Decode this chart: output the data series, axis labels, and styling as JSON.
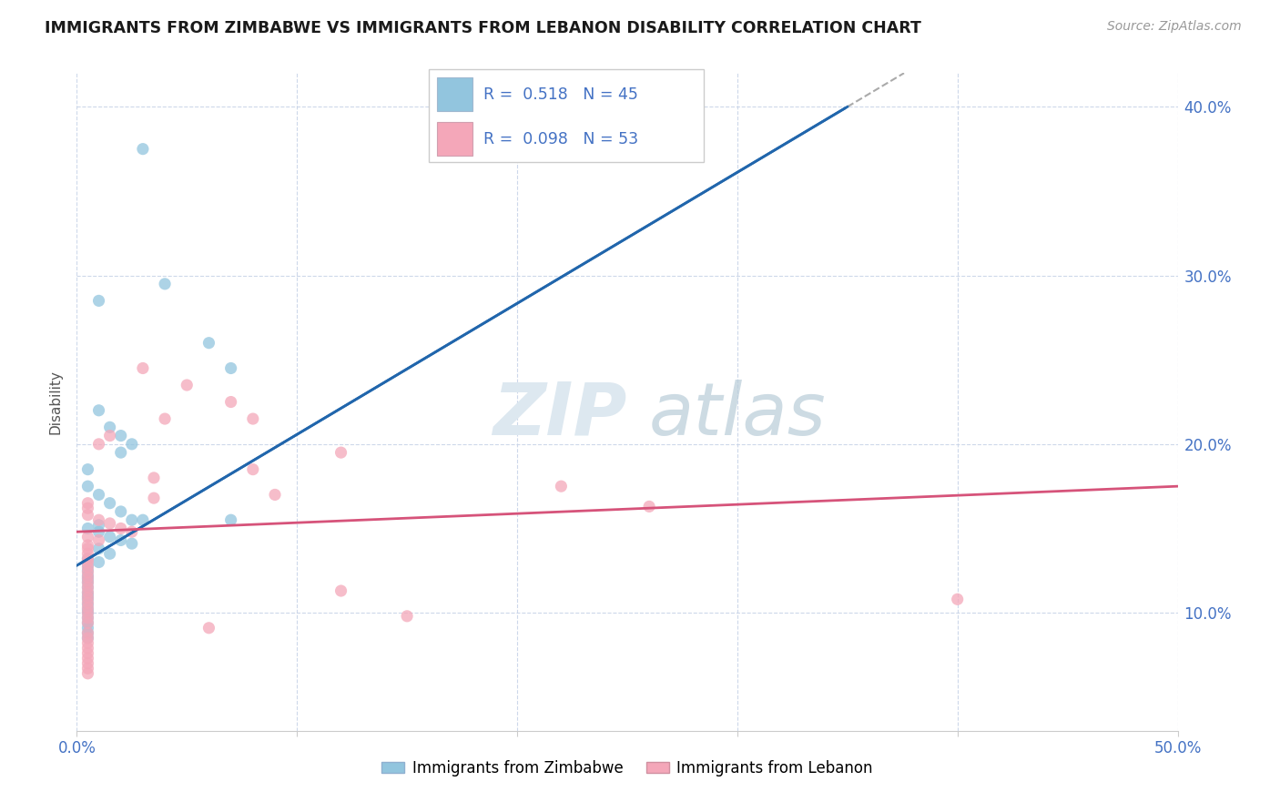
{
  "title": "IMMIGRANTS FROM ZIMBABWE VS IMMIGRANTS FROM LEBANON DISABILITY CORRELATION CHART",
  "source": "Source: ZipAtlas.com",
  "ylabel": "Disability",
  "xlim": [
    0.0,
    0.5
  ],
  "ylim": [
    0.03,
    0.42
  ],
  "ytick_vals": [
    0.1,
    0.2,
    0.3,
    0.4
  ],
  "ytick_labels": [
    "10.0%",
    "20.0%",
    "30.0%",
    "40.0%"
  ],
  "xtick_vals": [
    0.0,
    0.1,
    0.2,
    0.3,
    0.4,
    0.5
  ],
  "xtick_labels": [
    "0.0%",
    "",
    "",
    "",
    "",
    "50.0%"
  ],
  "r_zimbabwe": 0.518,
  "n_zimbabwe": 45,
  "r_lebanon": 0.098,
  "n_lebanon": 53,
  "color_zimbabwe": "#92c5de",
  "color_lebanon": "#f4a7b9",
  "color_line_zimbabwe": "#2166ac",
  "color_line_lebanon": "#d6537a",
  "zimbabwe_line": [
    0.0,
    0.128,
    0.35,
    0.4
  ],
  "lebanon_line": [
    0.0,
    0.148,
    0.5,
    0.175
  ],
  "zimbabwe_points": [
    [
      0.01,
      0.285
    ],
    [
      0.03,
      0.375
    ],
    [
      0.06,
      0.26
    ],
    [
      0.04,
      0.295
    ],
    [
      0.07,
      0.245
    ],
    [
      0.02,
      0.195
    ],
    [
      0.005,
      0.185
    ],
    [
      0.01,
      0.22
    ],
    [
      0.015,
      0.21
    ],
    [
      0.02,
      0.205
    ],
    [
      0.025,
      0.2
    ],
    [
      0.005,
      0.175
    ],
    [
      0.01,
      0.17
    ],
    [
      0.015,
      0.165
    ],
    [
      0.02,
      0.16
    ],
    [
      0.025,
      0.155
    ],
    [
      0.03,
      0.155
    ],
    [
      0.005,
      0.15
    ],
    [
      0.01,
      0.148
    ],
    [
      0.015,
      0.145
    ],
    [
      0.02,
      0.143
    ],
    [
      0.025,
      0.141
    ],
    [
      0.01,
      0.138
    ],
    [
      0.015,
      0.135
    ],
    [
      0.005,
      0.132
    ],
    [
      0.01,
      0.13
    ],
    [
      0.005,
      0.128
    ],
    [
      0.005,
      0.125
    ],
    [
      0.005,
      0.122
    ],
    [
      0.005,
      0.12
    ],
    [
      0.005,
      0.118
    ],
    [
      0.005,
      0.115
    ],
    [
      0.005,
      0.112
    ],
    [
      0.005,
      0.11
    ],
    [
      0.005,
      0.108
    ],
    [
      0.005,
      0.105
    ],
    [
      0.005,
      0.102
    ],
    [
      0.005,
      0.1
    ],
    [
      0.005,
      0.097
    ],
    [
      0.005,
      0.094
    ],
    [
      0.005,
      0.091
    ],
    [
      0.005,
      0.088
    ],
    [
      0.005,
      0.085
    ],
    [
      0.01,
      0.152
    ],
    [
      0.07,
      0.155
    ]
  ],
  "lebanon_points": [
    [
      0.03,
      0.245
    ],
    [
      0.05,
      0.235
    ],
    [
      0.07,
      0.225
    ],
    [
      0.04,
      0.215
    ],
    [
      0.08,
      0.215
    ],
    [
      0.015,
      0.205
    ],
    [
      0.01,
      0.2
    ],
    [
      0.12,
      0.195
    ],
    [
      0.08,
      0.185
    ],
    [
      0.035,
      0.18
    ],
    [
      0.22,
      0.175
    ],
    [
      0.09,
      0.17
    ],
    [
      0.035,
      0.168
    ],
    [
      0.005,
      0.165
    ],
    [
      0.005,
      0.162
    ],
    [
      0.005,
      0.158
    ],
    [
      0.01,
      0.155
    ],
    [
      0.015,
      0.153
    ],
    [
      0.02,
      0.15
    ],
    [
      0.025,
      0.148
    ],
    [
      0.005,
      0.145
    ],
    [
      0.01,
      0.143
    ],
    [
      0.005,
      0.14
    ],
    [
      0.005,
      0.138
    ],
    [
      0.005,
      0.135
    ],
    [
      0.005,
      0.132
    ],
    [
      0.005,
      0.13
    ],
    [
      0.005,
      0.127
    ],
    [
      0.005,
      0.124
    ],
    [
      0.005,
      0.121
    ],
    [
      0.005,
      0.118
    ],
    [
      0.005,
      0.115
    ],
    [
      0.005,
      0.112
    ],
    [
      0.12,
      0.113
    ],
    [
      0.005,
      0.109
    ],
    [
      0.005,
      0.106
    ],
    [
      0.005,
      0.103
    ],
    [
      0.005,
      0.1
    ],
    [
      0.005,
      0.097
    ],
    [
      0.005,
      0.094
    ],
    [
      0.06,
      0.091
    ],
    [
      0.005,
      0.088
    ],
    [
      0.15,
      0.098
    ],
    [
      0.005,
      0.085
    ],
    [
      0.005,
      0.082
    ],
    [
      0.005,
      0.079
    ],
    [
      0.005,
      0.076
    ],
    [
      0.005,
      0.073
    ],
    [
      0.005,
      0.07
    ],
    [
      0.005,
      0.067
    ],
    [
      0.005,
      0.064
    ],
    [
      0.4,
      0.108
    ],
    [
      0.26,
      0.163
    ]
  ]
}
